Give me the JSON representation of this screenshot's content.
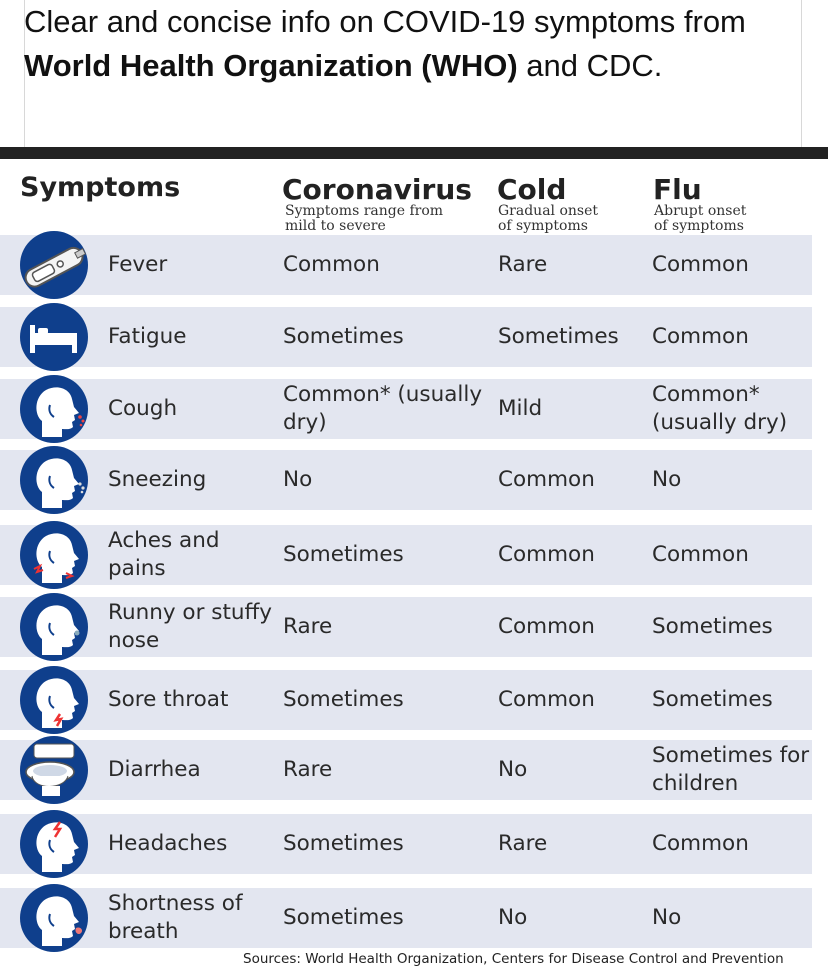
{
  "post": {
    "text_before": "Clear and concise info on COVID-19 symptoms from ",
    "text_bold": "World Health Organization (WHO)",
    "text_after": " and CDC."
  },
  "table": {
    "header_symptoms": "Symptoms",
    "columns": [
      {
        "title": "Coronavirus",
        "subtitle_1": "Symptoms range from",
        "subtitle_2": "mild to severe"
      },
      {
        "title": "Cold",
        "subtitle_1": "Gradual onset",
        "subtitle_2": "of symptoms"
      },
      {
        "title": "Flu",
        "subtitle_1": "Abrupt onset",
        "subtitle_2": "of symptoms"
      }
    ],
    "rows": [
      {
        "icon": "thermometer-icon",
        "symptom": "Fever",
        "coronavirus": "Common",
        "cold": "Rare",
        "flu": "Common"
      },
      {
        "icon": "bed-icon",
        "symptom": "Fatigue",
        "coronavirus": "Sometimes",
        "cold": "Sometimes",
        "flu": "Common"
      },
      {
        "icon": "head-cough-icon",
        "symptom": "Cough",
        "coronavirus": "Common* (usually dry)",
        "cold": "Mild",
        "flu": "Common* (usually dry)"
      },
      {
        "icon": "head-sneeze-icon",
        "symptom": "Sneezing",
        "coronavirus": "No",
        "cold": "Common",
        "flu": "No"
      },
      {
        "icon": "head-aches-icon",
        "symptom": "Aches and pains",
        "coronavirus": "Sometimes",
        "cold": "Common",
        "flu": "Common"
      },
      {
        "icon": "head-nose-icon",
        "symptom": "Runny or stuffy nose",
        "coronavirus": "Rare",
        "cold": "Common",
        "flu": "Sometimes"
      },
      {
        "icon": "head-throat-icon",
        "symptom": "Sore throat",
        "coronavirus": "Sometimes",
        "cold": "Common",
        "flu": "Sometimes"
      },
      {
        "icon": "toilet-icon",
        "symptom": "Diarrhea",
        "coronavirus": "Rare",
        "cold": "No",
        "flu": "Sometimes for children"
      },
      {
        "icon": "head-headache-icon",
        "symptom": "Headaches",
        "coronavirus": "Sometimes",
        "cold": "Rare",
        "flu": "Common"
      },
      {
        "icon": "head-breath-icon",
        "symptom": "Shortness of breath",
        "coronavirus": "Sometimes",
        "cold": "No",
        "flu": "No"
      }
    ]
  },
  "sources": "Sources: World Health Organization, Centers for Disease Control and Prevention",
  "colors": {
    "row_bg": "#e3e6f0",
    "icon_bg": "#0f3f8c",
    "accent": "#c0392b"
  }
}
